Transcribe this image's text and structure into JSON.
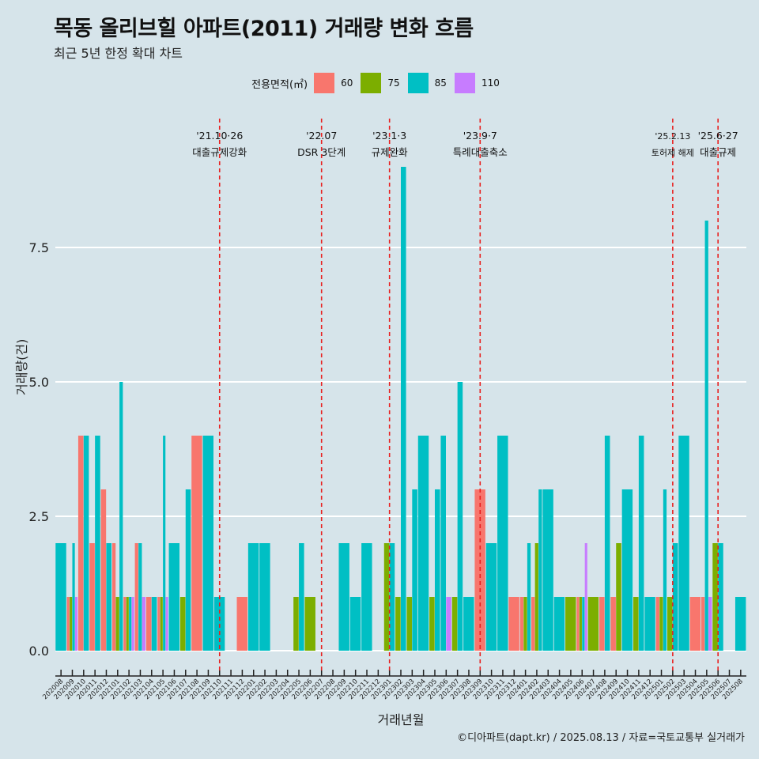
{
  "title": "목동 올리브힐 아파트(2011) 거래량 변화 흐름",
  "subtitle": "최근 5년 한정 확대 차트",
  "caption": "©디아파트(dapt.kr) / 2025.08.13 / 자료=국토교통부 실거래가",
  "legend_title": "전용면적(㎡)",
  "colors": {
    "60": "#f8766d",
    "75": "#7cae00",
    "85": "#00bfc4",
    "110": "#c77cff"
  },
  "chart_data": {
    "type": "bar",
    "title": "목동 올리브힐 아파트(2011) 거래량 변화 흐름",
    "xlabel": "거래년월",
    "ylabel": "거래량(건)",
    "ylim": [
      0,
      9
    ],
    "yticks": [
      0,
      2.5,
      5,
      7.5
    ],
    "ytick_labels": [
      "0.0",
      "2.5",
      "5.0",
      "7.5"
    ],
    "legend": [
      "60",
      "75",
      "85",
      "110"
    ],
    "categories": [
      "202008",
      "202009",
      "202010",
      "202011",
      "202012",
      "202101",
      "202102",
      "202103",
      "202104",
      "202105",
      "202106",
      "202107",
      "202108",
      "202109",
      "202110",
      "202111",
      "202112",
      "202201",
      "202202",
      "202203",
      "202204",
      "202205",
      "202206",
      "202207",
      "202208",
      "202209",
      "202210",
      "202211",
      "202212",
      "202301",
      "202302",
      "202303",
      "202304",
      "202305",
      "202306",
      "202307",
      "202308",
      "202309",
      "202310",
      "202311",
      "202312",
      "202401",
      "202402",
      "202403",
      "202404",
      "202405",
      "202406",
      "202407",
      "202408",
      "202409",
      "202410",
      "202411",
      "202412",
      "202501",
      "202502",
      "202503",
      "202504",
      "202505",
      "202506",
      "202507",
      "202508"
    ],
    "series": [
      {
        "name": "60",
        "values": [
          0,
          1,
          4,
          2,
          3,
          2,
          1,
          2,
          1,
          1,
          0,
          0,
          4,
          0,
          0,
          0,
          1,
          0,
          0,
          0,
          0,
          0,
          0,
          0,
          0,
          0,
          0,
          0,
          0,
          0,
          0,
          0,
          0,
          0,
          0,
          0,
          0,
          3,
          0,
          0,
          1,
          1,
          1,
          0,
          0,
          0,
          1,
          0,
          1,
          1,
          0,
          0,
          0,
          1,
          0,
          0,
          1,
          1,
          0,
          0,
          0
        ]
      },
      {
        "name": "75",
        "values": [
          0,
          1,
          0,
          0,
          0,
          1,
          1,
          0,
          0,
          1,
          0,
          1,
          0,
          0,
          0,
          0,
          0,
          0,
          0,
          0,
          0,
          1,
          1,
          0,
          0,
          0,
          0,
          0,
          0,
          2,
          1,
          1,
          0,
          1,
          0,
          1,
          0,
          0,
          0,
          0,
          0,
          1,
          2,
          0,
          0,
          1,
          1,
          1,
          0,
          2,
          0,
          1,
          0,
          1,
          1,
          0,
          0,
          0,
          2,
          0,
          0
        ]
      },
      {
        "name": "85",
        "values": [
          2,
          2,
          4,
          4,
          2,
          5,
          1,
          2,
          1,
          4,
          2,
          3,
          0,
          4,
          1,
          0,
          0,
          2,
          2,
          0,
          0,
          2,
          0,
          0,
          0,
          2,
          1,
          2,
          0,
          2,
          9,
          3,
          4,
          3,
          4,
          5,
          1,
          0,
          2,
          4,
          0,
          2,
          3,
          3,
          1,
          0,
          1,
          0,
          4,
          0,
          3,
          4,
          1,
          3,
          2,
          4,
          0,
          8,
          2,
          0,
          1
        ]
      },
      {
        "name": "110",
        "values": [
          0,
          1,
          0,
          0,
          0,
          0,
          1,
          1,
          0,
          1,
          0,
          0,
          0,
          0,
          0,
          0,
          0,
          0,
          0,
          0,
          0,
          0,
          0,
          0,
          0,
          0,
          0,
          0,
          0,
          0,
          0,
          0,
          0,
          0,
          1,
          0,
          0,
          0,
          0,
          0,
          0,
          0,
          0,
          0,
          0,
          0,
          2,
          0,
          0,
          0,
          0,
          0,
          0,
          0,
          0,
          0,
          0,
          1,
          0,
          0,
          0
        ]
      }
    ],
    "events": [
      {
        "date": "'21.10·26",
        "label": "대출규제강화",
        "index": 14
      },
      {
        "date": "'22.07",
        "label": "DSR 3단계",
        "index": 23
      },
      {
        "date": "'23.1·3",
        "label": "규제완화",
        "index": 29
      },
      {
        "date": "'23.9·7",
        "label": "특례대출축소",
        "index": 37
      },
      {
        "date": "'25.2.13",
        "label": "토허제 해제",
        "index": 54
      },
      {
        "date": "'25.6·27",
        "label": "대출규제",
        "index": 58
      }
    ]
  }
}
